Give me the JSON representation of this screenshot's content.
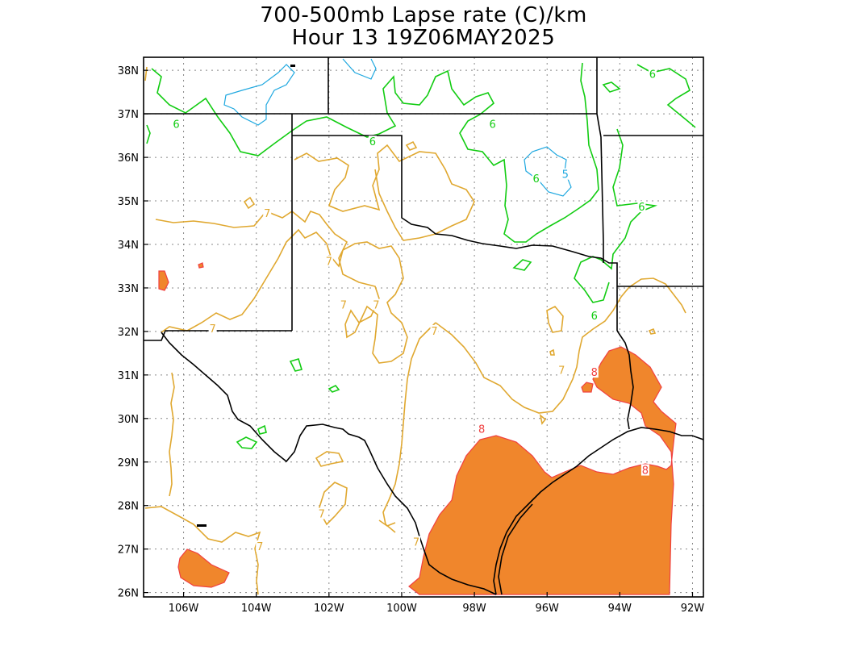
{
  "title": "700-500mb Lapse rate (C)/km",
  "subtitle": "Hour 13 19Z06MAY2025",
  "colors": {
    "contour_5": "#1fa8e0",
    "contour_6": "#12cc12",
    "contour_7": "#e0a830",
    "contour_8_line": "#f04040",
    "fill_8": "#f0862c",
    "grid": "#888888",
    "borders": "#000000"
  },
  "map": {
    "lon_range": [
      -107.1,
      -91.7
    ],
    "lat_range": [
      25.9,
      38.3
    ],
    "x_ticks": [
      {
        "lon": -106,
        "label": "106W"
      },
      {
        "lon": -104,
        "label": "104W"
      },
      {
        "lon": -102,
        "label": "102W"
      },
      {
        "lon": -100,
        "label": "100W"
      },
      {
        "lon": -98,
        "label": "98W"
      },
      {
        "lon": -96,
        "label": "96W"
      },
      {
        "lon": -94,
        "label": "94W"
      },
      {
        "lon": -92,
        "label": "92W"
      }
    ],
    "y_ticks": [
      {
        "lat": 26,
        "label": "26N"
      },
      {
        "lat": 27,
        "label": "27N"
      },
      {
        "lat": 28,
        "label": "28N"
      },
      {
        "lat": 29,
        "label": "29N"
      },
      {
        "lat": 30,
        "label": "30N"
      },
      {
        "lat": 31,
        "label": "31N"
      },
      {
        "lat": 32,
        "label": "32N"
      },
      {
        "lat": 33,
        "label": "33N"
      },
      {
        "lat": 34,
        "label": "34N"
      },
      {
        "lat": 35,
        "label": "35N"
      },
      {
        "lat": 36,
        "label": "36N"
      },
      {
        "lat": 37,
        "label": "37N"
      },
      {
        "lat": 38,
        "label": "38N"
      }
    ],
    "grid": "dotted"
  },
  "contour_labels": [
    {
      "text": "6",
      "lon": -106.2,
      "lat": 36.75,
      "level": 6
    },
    {
      "text": "6",
      "lon": -100.8,
      "lat": 36.35,
      "level": 6
    },
    {
      "text": "6",
      "lon": -97.5,
      "lat": 36.75,
      "level": 6
    },
    {
      "text": "6",
      "lon": -96.3,
      "lat": 35.5,
      "level": 6
    },
    {
      "text": "6",
      "lon": -93.1,
      "lat": 37.9,
      "level": 6
    },
    {
      "text": "6",
      "lon": -93.4,
      "lat": 34.85,
      "level": 6
    },
    {
      "text": "6",
      "lon": -94.7,
      "lat": 32.35,
      "level": 6
    },
    {
      "text": "5",
      "lon": -95.5,
      "lat": 35.6,
      "level": 5
    },
    {
      "text": "7",
      "lon": -103.7,
      "lat": 34.7,
      "level": 7
    },
    {
      "text": "7",
      "lon": -102.0,
      "lat": 33.6,
      "level": 7
    },
    {
      "text": "7",
      "lon": -105.2,
      "lat": 32.05,
      "level": 7
    },
    {
      "text": "7",
      "lon": -101.6,
      "lat": 32.6,
      "level": 7
    },
    {
      "text": "7",
      "lon": -100.7,
      "lat": 32.6,
      "level": 7
    },
    {
      "text": "7",
      "lon": -99.1,
      "lat": 32.0,
      "level": 7
    },
    {
      "text": "7",
      "lon": -95.6,
      "lat": 31.1,
      "level": 7
    },
    {
      "text": "7",
      "lon": -102.2,
      "lat": 27.8,
      "level": 7
    },
    {
      "text": "7",
      "lon": -103.9,
      "lat": 27.05,
      "level": 7
    },
    {
      "text": "7",
      "lon": -99.6,
      "lat": 27.15,
      "level": 7
    },
    {
      "text": "8",
      "lon": -97.8,
      "lat": 29.75,
      "level": 8
    },
    {
      "text": "8",
      "lon": -94.7,
      "lat": 31.05,
      "level": 8
    },
    {
      "text": "8",
      "lon": -93.3,
      "lat": 28.8,
      "level": 8
    }
  ]
}
